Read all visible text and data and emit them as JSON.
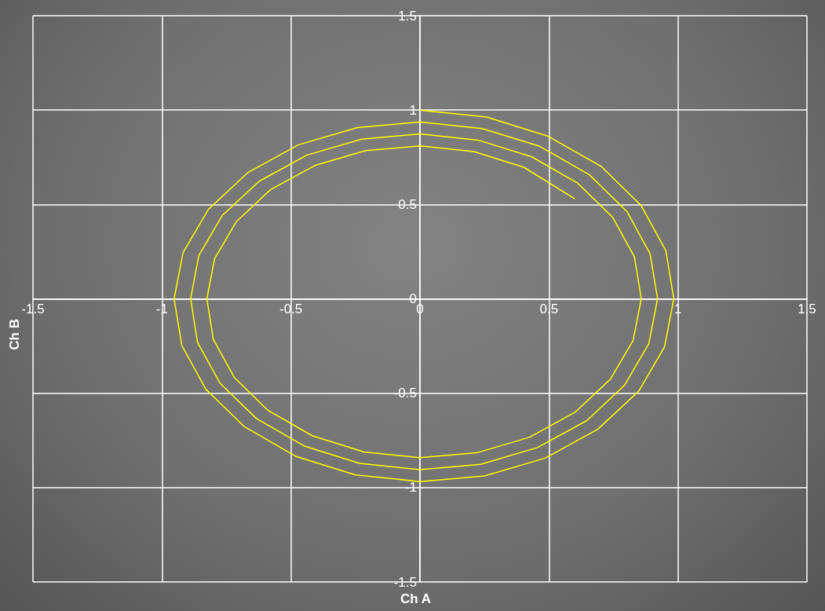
{
  "chart_data": {
    "type": "line",
    "xlabel": "Ch A",
    "ylabel": "Ch B",
    "xlim": [
      -1.5,
      1.5
    ],
    "ylim": [
      -1.5,
      1.5
    ],
    "xticks": [
      -1.5,
      -1,
      -0.5,
      0,
      0.5,
      1,
      1.5
    ],
    "yticks": [
      -1.5,
      -1,
      -0.5,
      0,
      0.5,
      1,
      1.5
    ],
    "grid": true,
    "marker": "none",
    "line_style": "solid",
    "series": [
      {
        "color": "#ffff00",
        "x": [
          0,
          0.258,
          0.497,
          0.702,
          0.857,
          0.953,
          0.984,
          0.948,
          0.848,
          0.69,
          0.487,
          0.251,
          0,
          -0.25,
          -0.482,
          -0.679,
          -0.83,
          -0.923,
          -0.953,
          -0.918,
          -0.82,
          -0.668,
          -0.471,
          -0.243,
          0,
          0.242,
          0.466,
          0.657,
          0.802,
          0.892,
          0.921,
          0.887,
          0.793,
          0.646,
          0.455,
          0.235,
          0,
          -0.234,
          -0.45,
          -0.634,
          -0.775,
          -0.862,
          -0.889,
          -0.857,
          -0.766,
          -0.623,
          -0.439,
          -0.227,
          0,
          0.225,
          0.434,
          0.612,
          0.747,
          0.831,
          0.858,
          0.826,
          0.738,
          0.601,
          0.424,
          0.219,
          0,
          -0.217,
          -0.418,
          -0.59,
          -0.72,
          -0.801,
          -0.826,
          -0.796,
          -0.711,
          -0.579,
          -0.408,
          -0.21,
          0,
          0.209,
          0.403,
          0.6
        ],
        "values": [
          1,
          0.963,
          0.861,
          0.702,
          0.495,
          0.255,
          0,
          -0.254,
          -0.489,
          -0.69,
          -0.843,
          -0.938,
          -0.968,
          -0.933,
          -0.834,
          -0.679,
          -0.479,
          -0.247,
          0,
          0.246,
          0.474,
          0.668,
          0.816,
          0.907,
          0.937,
          0.902,
          0.807,
          0.657,
          0.463,
          0.239,
          0,
          -0.238,
          -0.458,
          -0.646,
          -0.788,
          -0.877,
          -0.905,
          -0.872,
          -0.779,
          -0.634,
          -0.447,
          -0.231,
          0,
          0.23,
          0.442,
          0.623,
          0.761,
          0.846,
          0.874,
          0.841,
          0.752,
          0.612,
          0.432,
          0.223,
          0,
          -0.221,
          -0.426,
          -0.601,
          -0.734,
          -0.816,
          -0.842,
          -0.811,
          -0.725,
          -0.59,
          -0.416,
          -0.215,
          0,
          0.213,
          0.41,
          0.579,
          0.706,
          0.785,
          0.81,
          0.78,
          0.697,
          0.53
        ]
      }
    ]
  }
}
